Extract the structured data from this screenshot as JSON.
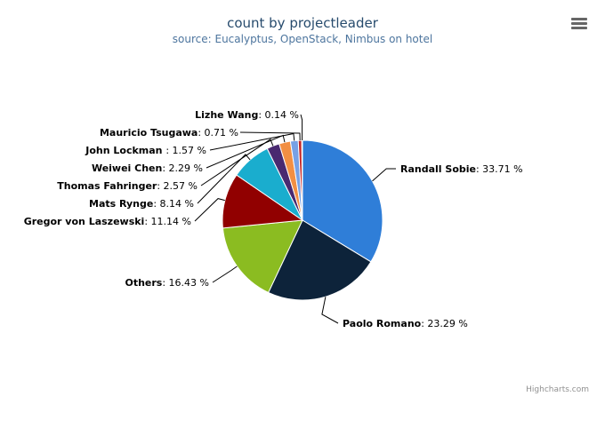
{
  "chart_data": {
    "type": "pie",
    "title": "count by projectleader",
    "subtitle": "source: Eucalyptus, OpenStack, Nimbus on hotel",
    "slices": [
      {
        "name": "Randall Sobie",
        "value": 33.71,
        "label": ": 33.71 %",
        "color": "#2f7ed8"
      },
      {
        "name": "Paolo Romano",
        "value": 23.29,
        "label": ": 23.29 %",
        "color": "#0d233a"
      },
      {
        "name": "Others",
        "value": 16.43,
        "label": ": 16.43 %",
        "color": "#8bbc21"
      },
      {
        "name": "Gregor von Laszewski",
        "value": 11.14,
        "label": ": 11.14 %",
        "color": "#910000"
      },
      {
        "name": "Mats Rynge",
        "value": 8.14,
        "label": ": 8.14 %",
        "color": "#1aadce"
      },
      {
        "name": "Thomas Fahringer",
        "value": 2.57,
        "label": ": 2.57 %",
        "color": "#492970"
      },
      {
        "name": "Weiwei Chen",
        "value": 2.29,
        "label": ": 2.29 %",
        "color": "#f28f43"
      },
      {
        "name": "John Lockman ",
        "value": 1.57,
        "label": ": 1.57 %",
        "color": "#77a1e5"
      },
      {
        "name": "Mauricio Tsugawa",
        "value": 0.71,
        "label": ": 0.71 %",
        "color": "#c42525"
      },
      {
        "name": "Lizhe Wang",
        "value": 0.14,
        "label": ": 0.14 %",
        "color": "#a6c96a"
      }
    ]
  },
  "ui": {
    "menu_icon": "hamburger-menu-icon",
    "credits": "Highcharts.com"
  }
}
